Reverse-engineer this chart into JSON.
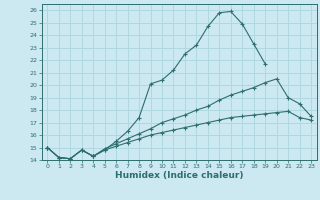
{
  "title": "",
  "xlabel": "Humidex (Indice chaleur)",
  "bg_color": "#cce8f0",
  "line_color": "#2d6e6e",
  "grid_color": "#b0d8e0",
  "xlim": [
    -0.5,
    23.5
  ],
  "ylim": [
    14,
    26.5
  ],
  "xticks": [
    0,
    1,
    2,
    3,
    4,
    5,
    6,
    7,
    8,
    9,
    10,
    11,
    12,
    13,
    14,
    15,
    16,
    17,
    18,
    19,
    20,
    21,
    22,
    23
  ],
  "yticks": [
    14,
    15,
    16,
    17,
    18,
    19,
    20,
    21,
    22,
    23,
    24,
    25,
    26
  ],
  "series": [
    {
      "x": [
        0,
        1,
        2,
        3,
        4,
        5,
        6,
        7,
        8,
        9,
        10,
        11,
        12,
        13,
        14,
        15,
        16,
        17,
        18,
        19
      ],
      "y": [
        15.0,
        14.2,
        14.1,
        14.8,
        14.3,
        14.8,
        15.5,
        16.3,
        17.4,
        20.1,
        20.4,
        21.2,
        22.5,
        23.2,
        24.7,
        25.8,
        25.9,
        24.9,
        23.3,
        21.7
      ]
    },
    {
      "x": [
        0,
        1,
        2,
        3,
        4,
        5,
        6,
        7,
        8,
        9,
        10,
        11,
        12,
        13,
        14,
        15,
        16,
        17,
        18,
        19,
        20,
        21,
        22,
        23
      ],
      "y": [
        15.0,
        14.2,
        14.1,
        14.8,
        14.3,
        14.9,
        15.3,
        15.7,
        16.1,
        16.5,
        17.0,
        17.3,
        17.6,
        18.0,
        18.3,
        18.8,
        19.2,
        19.5,
        19.8,
        20.2,
        20.5,
        19.0,
        18.5,
        17.5
      ]
    },
    {
      "x": [
        0,
        1,
        2,
        3,
        4,
        5,
        6,
        7,
        8,
        9,
        10,
        11,
        12,
        13,
        14,
        15,
        16,
        17,
        18,
        19,
        20,
        21,
        22,
        23
      ],
      "y": [
        15.0,
        14.2,
        14.1,
        14.8,
        14.3,
        14.8,
        15.1,
        15.4,
        15.7,
        16.0,
        16.2,
        16.4,
        16.6,
        16.8,
        17.0,
        17.2,
        17.4,
        17.5,
        17.6,
        17.7,
        17.8,
        17.9,
        17.4,
        17.2
      ]
    }
  ]
}
